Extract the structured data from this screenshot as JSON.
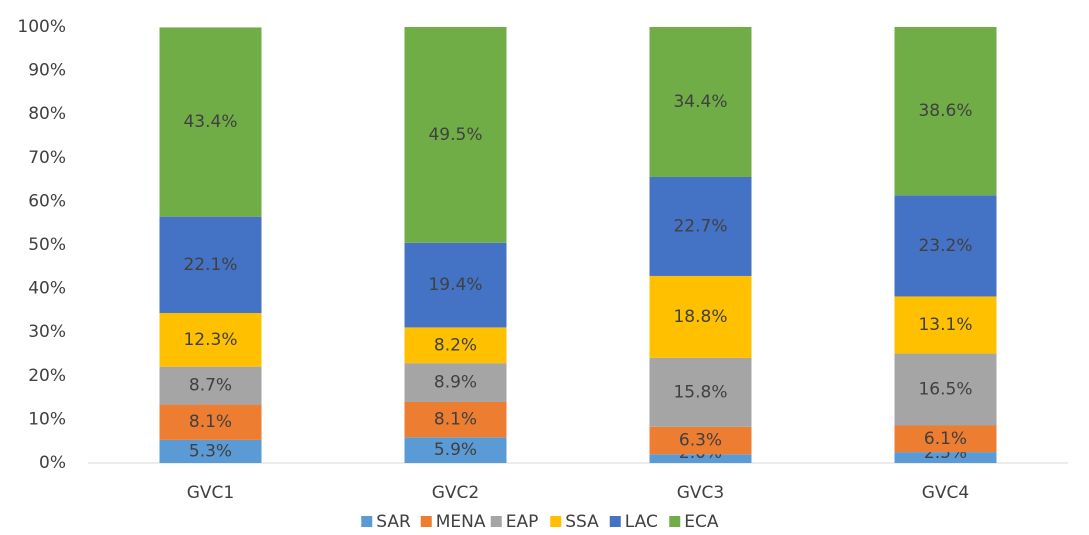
{
  "chart_data": {
    "type": "stacked_bar",
    "categories": [
      "GVC1",
      "GVC2",
      "GVC3",
      "GVC4"
    ],
    "series": [
      {
        "name": "SAR",
        "color": "#5b9bd5",
        "values": [
          5.3,
          5.9,
          2.0,
          2.5
        ],
        "value_labels": [
          "5.3%",
          "5.9%",
          "2.0%",
          "2.5%"
        ]
      },
      {
        "name": "MENA",
        "color": "#ed7d31",
        "values": [
          8.1,
          8.1,
          6.3,
          6.1
        ],
        "value_labels": [
          "8.1%",
          "8.1%",
          "6.3%",
          "6.1%"
        ]
      },
      {
        "name": "EAP",
        "color": "#a5a5a5",
        "values": [
          8.7,
          8.9,
          15.8,
          16.5
        ],
        "value_labels": [
          "8.7%",
          "8.9%",
          "15.8%",
          "16.5%"
        ]
      },
      {
        "name": "SSA",
        "color": "#ffc000",
        "values": [
          12.3,
          8.2,
          18.8,
          13.1
        ],
        "value_labels": [
          "12.3%",
          "8.2%",
          "18.8%",
          "13.1%"
        ]
      },
      {
        "name": "LAC",
        "color": "#4472c4",
        "values": [
          22.1,
          19.4,
          22.7,
          23.2
        ],
        "value_labels": [
          "22.1%",
          "19.4%",
          "22.7%",
          "23.2%"
        ]
      },
      {
        "name": "ECA",
        "color": "#70ad47",
        "values": [
          43.4,
          49.5,
          34.4,
          38.6
        ],
        "value_labels": [
          "43.4%",
          "49.5%",
          "34.4%",
          "38.6%"
        ]
      }
    ],
    "ylim": [
      0,
      100
    ],
    "yticks": [
      {
        "value": 0,
        "label": "0%"
      },
      {
        "value": 10,
        "label": "10%"
      },
      {
        "value": 20,
        "label": "20%"
      },
      {
        "value": 30,
        "label": "30%"
      },
      {
        "value": 40,
        "label": "40%"
      },
      {
        "value": 50,
        "label": "50%"
      },
      {
        "value": 60,
        "label": "60%"
      },
      {
        "value": 70,
        "label": "70%"
      },
      {
        "value": 80,
        "label": "80%"
      },
      {
        "value": 90,
        "label": "90%"
      },
      {
        "value": 100,
        "label": "100%"
      }
    ],
    "legend": "bottom"
  }
}
